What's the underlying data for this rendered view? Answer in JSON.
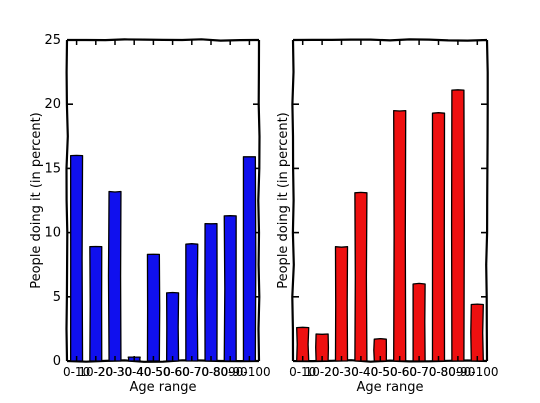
{
  "chart_data": [
    {
      "type": "bar",
      "categories": [
        "0-10",
        "10-20",
        "20-30",
        "30-40",
        "40-50",
        "50-60",
        "60-70",
        "70-80",
        "80-90",
        "90-100"
      ],
      "values": [
        16.0,
        8.9,
        13.2,
        0.3,
        8.3,
        5.3,
        9.1,
        10.7,
        11.3,
        15.9
      ],
      "xlabel": "Age range",
      "ylabel": "People doing it (in percent)",
      "ylim": [
        0,
        25
      ],
      "yticks": [
        "0",
        "5",
        "10",
        "15",
        "20",
        "25"
      ],
      "color": "#1010ee",
      "style": "xkcd hand-drawn"
    },
    {
      "type": "bar",
      "categories": [
        "0-10",
        "10-20",
        "20-30",
        "30-40",
        "40-50",
        "50-60",
        "60-70",
        "70-80",
        "80-90",
        "90-100"
      ],
      "values": [
        2.6,
        2.1,
        8.9,
        13.1,
        1.7,
        19.5,
        6.0,
        19.3,
        21.1,
        4.4
      ],
      "xlabel": "Age range",
      "ylabel": "People doing it (in percent)",
      "ylim": [
        0,
        25
      ],
      "color": "#ee1010",
      "style": "xkcd hand-drawn"
    }
  ]
}
